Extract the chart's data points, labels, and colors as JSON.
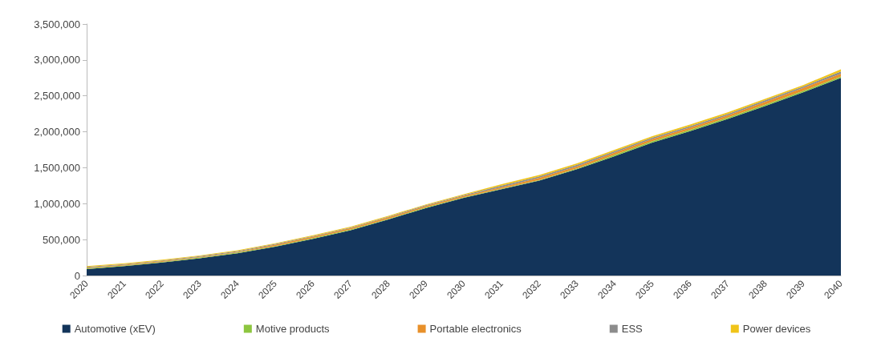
{
  "chart_data": {
    "type": "area",
    "stacked": true,
    "categories": [
      "2020",
      "2021",
      "2022",
      "2023",
      "2024",
      "2025",
      "2026",
      "2027",
      "2028",
      "2029",
      "2030",
      "2031",
      "2032",
      "2033",
      "2034",
      "2035",
      "2036",
      "2037",
      "2038",
      "2039",
      "2040"
    ],
    "ylim": [
      0,
      3500000
    ],
    "yticks": [
      0,
      {
        "value": 500000,
        "label": "500,000"
      },
      {
        "value": 1000000,
        "label": "1,000,000"
      },
      {
        "value": 1500000,
        "label": "1,500,000"
      },
      {
        "value": 2000000,
        "label": "2,000,000"
      },
      {
        "value": 2500000,
        "label": "2,500,000"
      },
      {
        "value": 3000000,
        "label": "3,000,000"
      },
      {
        "value": 3500000,
        "label": "3,500,000"
      }
    ],
    "grid": false,
    "legend": "bottom",
    "series": [
      {
        "name": "Automotive (xEV)",
        "color": "#13345a",
        "values": [
          90000,
          130000,
          180000,
          240000,
          310000,
          400000,
          510000,
          630000,
          780000,
          940000,
          1080000,
          1200000,
          1320000,
          1480000,
          1660000,
          1850000,
          2010000,
          2180000,
          2360000,
          2550000,
          2750000
        ]
      },
      {
        "name": "Motive products",
        "color": "#8dc63f",
        "values": [
          10000,
          10000,
          10000,
          10000,
          10000,
          10000,
          10000,
          10000,
          10000,
          10000,
          10000,
          10000,
          10000,
          10000,
          20000,
          20000,
          20000,
          20000,
          20000,
          20000,
          20000
        ]
      },
      {
        "name": "Portable electronics",
        "color": "#e8902a",
        "values": [
          10000,
          10000,
          10000,
          10000,
          10000,
          20000,
          20000,
          20000,
          20000,
          20000,
          20000,
          20000,
          30000,
          30000,
          30000,
          30000,
          30000,
          30000,
          40000,
          40000,
          40000
        ]
      },
      {
        "name": "ESS",
        "color": "#8c8c8c",
        "values": [
          10000,
          10000,
          10000,
          10000,
          10000,
          10000,
          10000,
          10000,
          10000,
          10000,
          10000,
          20000,
          20000,
          20000,
          20000,
          20000,
          20000,
          20000,
          20000,
          20000,
          30000
        ]
      },
      {
        "name": "Power devices",
        "color": "#f0c419",
        "values": [
          10000,
          10000,
          10000,
          10000,
          10000,
          10000,
          10000,
          10000,
          10000,
          10000,
          10000,
          20000,
          20000,
          20000,
          20000,
          20000,
          20000,
          20000,
          20000,
          20000,
          30000
        ]
      }
    ]
  }
}
